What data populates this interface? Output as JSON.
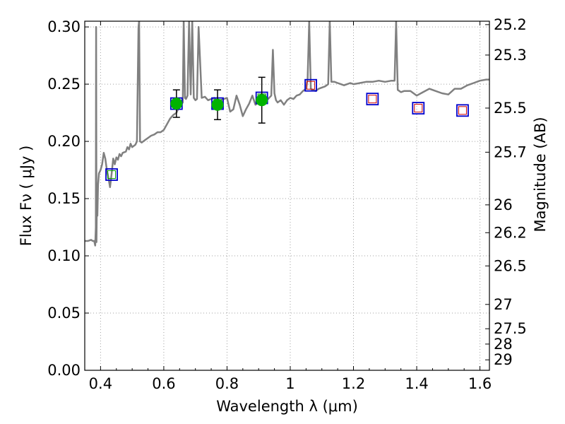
{
  "chart_data": {
    "type": "scatter",
    "xlabel": "Wavelength  λ (μm)",
    "ylabel": "Flux  Fν  ( μJy )",
    "y2label": "Magnitude (AB)",
    "xlim": [
      0.35,
      1.63
    ],
    "ylim": [
      0.0,
      0.305
    ],
    "grid": true,
    "x_ticks": [
      0.4,
      0.6,
      0.8,
      1.0,
      1.2,
      1.4,
      1.6
    ],
    "x_tick_labels": [
      "0.4",
      "0.6",
      "0.8",
      "1",
      "1.2",
      "1.4",
      "1.6"
    ],
    "y_ticks": [
      0.0,
      0.05,
      0.1,
      0.15,
      0.2,
      0.25,
      0.3
    ],
    "y_tick_labels": [
      "0.00",
      "0.05",
      "0.10",
      "0.15",
      "0.20",
      "0.25",
      "0.30"
    ],
    "y2_ticks": [
      {
        "label": "25.2",
        "mag": 25.2
      },
      {
        "label": "25.3",
        "mag": 25.3
      },
      {
        "label": "25.5",
        "mag": 25.5
      },
      {
        "label": "25.7",
        "mag": 25.7
      },
      {
        "label": "26",
        "mag": 26.0
      },
      {
        "label": "26.2",
        "mag": 26.2
      },
      {
        "label": "26.5",
        "mag": 26.5
      },
      {
        "label": "27",
        "mag": 27.0
      },
      {
        "label": "27.5",
        "mag": 27.5
      },
      {
        "label": "28",
        "mag": 28.0
      },
      {
        "label": "29",
        "mag": 29.0
      }
    ],
    "colors": {
      "model": "#808080",
      "observed": "#00b300",
      "errorbar": "#000000",
      "model_box": "#0000cc",
      "inner_box": "#cc0000",
      "inner_box_green": "#009900",
      "grid": "#a0a0a0"
    },
    "series": [
      {
        "kind": "model_spectrum",
        "x": [
          0.35,
          0.36,
          0.37,
          0.375,
          0.38,
          0.383,
          0.385,
          0.386,
          0.387,
          0.388,
          0.39,
          0.392,
          0.395,
          0.4,
          0.405,
          0.41,
          0.415,
          0.42,
          0.425,
          0.43,
          0.435,
          0.44,
          0.445,
          0.45,
          0.455,
          0.46,
          0.465,
          0.47,
          0.48,
          0.485,
          0.49,
          0.495,
          0.5,
          0.51,
          0.515,
          0.52,
          0.522,
          0.525,
          0.53,
          0.54,
          0.55,
          0.56,
          0.57,
          0.58,
          0.59,
          0.6,
          0.61,
          0.62,
          0.63,
          0.64,
          0.645,
          0.65,
          0.655,
          0.66,
          0.663,
          0.667,
          0.67,
          0.675,
          0.68,
          0.685,
          0.69,
          0.695,
          0.7,
          0.705,
          0.71,
          0.72,
          0.73,
          0.74,
          0.75,
          0.76,
          0.77,
          0.78,
          0.79,
          0.8,
          0.81,
          0.82,
          0.83,
          0.84,
          0.85,
          0.86,
          0.87,
          0.88,
          0.89,
          0.9,
          0.91,
          0.92,
          0.93,
          0.94,
          0.945,
          0.95,
          0.955,
          0.96,
          0.97,
          0.98,
          0.99,
          1.0,
          1.01,
          1.02,
          1.03,
          1.04,
          1.05,
          1.055,
          1.06,
          1.065,
          1.07,
          1.08,
          1.09,
          1.1,
          1.11,
          1.12,
          1.125,
          1.13,
          1.14,
          1.15,
          1.16,
          1.17,
          1.18,
          1.19,
          1.2,
          1.22,
          1.24,
          1.26,
          1.28,
          1.3,
          1.32,
          1.33,
          1.335,
          1.34,
          1.35,
          1.36,
          1.38,
          1.4,
          1.42,
          1.44,
          1.46,
          1.48,
          1.5,
          1.52,
          1.54,
          1.56,
          1.58,
          1.6,
          1.62,
          1.63
        ],
        "y": [
          0.113,
          0.113,
          0.114,
          0.113,
          0.113,
          0.109,
          0.125,
          0.3,
          0.112,
          0.137,
          0.135,
          0.162,
          0.172,
          0.175,
          0.18,
          0.19,
          0.185,
          0.175,
          0.168,
          0.16,
          0.172,
          0.185,
          0.18,
          0.186,
          0.184,
          0.189,
          0.187,
          0.19,
          0.191,
          0.195,
          0.193,
          0.198,
          0.195,
          0.197,
          0.2,
          0.3,
          0.305,
          0.2,
          0.199,
          0.201,
          0.203,
          0.205,
          0.206,
          0.208,
          0.208,
          0.21,
          0.215,
          0.22,
          0.223,
          0.225,
          0.228,
          0.23,
          0.232,
          0.234,
          0.305,
          0.238,
          0.237,
          0.24,
          0.305,
          0.241,
          0.305,
          0.238,
          0.236,
          0.237,
          0.3,
          0.238,
          0.239,
          0.236,
          0.237,
          0.238,
          0.234,
          0.236,
          0.237,
          0.238,
          0.226,
          0.228,
          0.24,
          0.232,
          0.222,
          0.228,
          0.233,
          0.24,
          0.232,
          0.234,
          0.238,
          0.24,
          0.237,
          0.24,
          0.28,
          0.242,
          0.236,
          0.234,
          0.236,
          0.232,
          0.236,
          0.238,
          0.237,
          0.24,
          0.241,
          0.244,
          0.246,
          0.255,
          0.305,
          0.246,
          0.245,
          0.244,
          0.246,
          0.247,
          0.248,
          0.25,
          0.305,
          0.252,
          0.252,
          0.251,
          0.25,
          0.249,
          0.25,
          0.251,
          0.25,
          0.251,
          0.252,
          0.252,
          0.253,
          0.252,
          0.253,
          0.253,
          0.305,
          0.245,
          0.243,
          0.244,
          0.244,
          0.24,
          0.243,
          0.246,
          0.244,
          0.242,
          0.241,
          0.246,
          0.246,
          0.249,
          0.251,
          0.253,
          0.254,
          0.254
        ]
      },
      {
        "kind": "observed_points",
        "name": "",
        "x": [
          0.64,
          0.77,
          0.91
        ],
        "y": [
          0.233,
          0.232,
          0.236
        ],
        "yerr": [
          0.012,
          0.013,
          0.02
        ]
      },
      {
        "kind": "model_photometry",
        "x": [
          0.435,
          0.64,
          0.77,
          0.91,
          1.065,
          1.26,
          1.405,
          1.545
        ],
        "y": [
          0.171,
          0.233,
          0.233,
          0.238,
          0.249,
          0.237,
          0.229,
          0.227
        ],
        "inner": [
          "green",
          "green",
          "green",
          "green",
          "red",
          "red",
          "red",
          "red"
        ]
      }
    ]
  }
}
